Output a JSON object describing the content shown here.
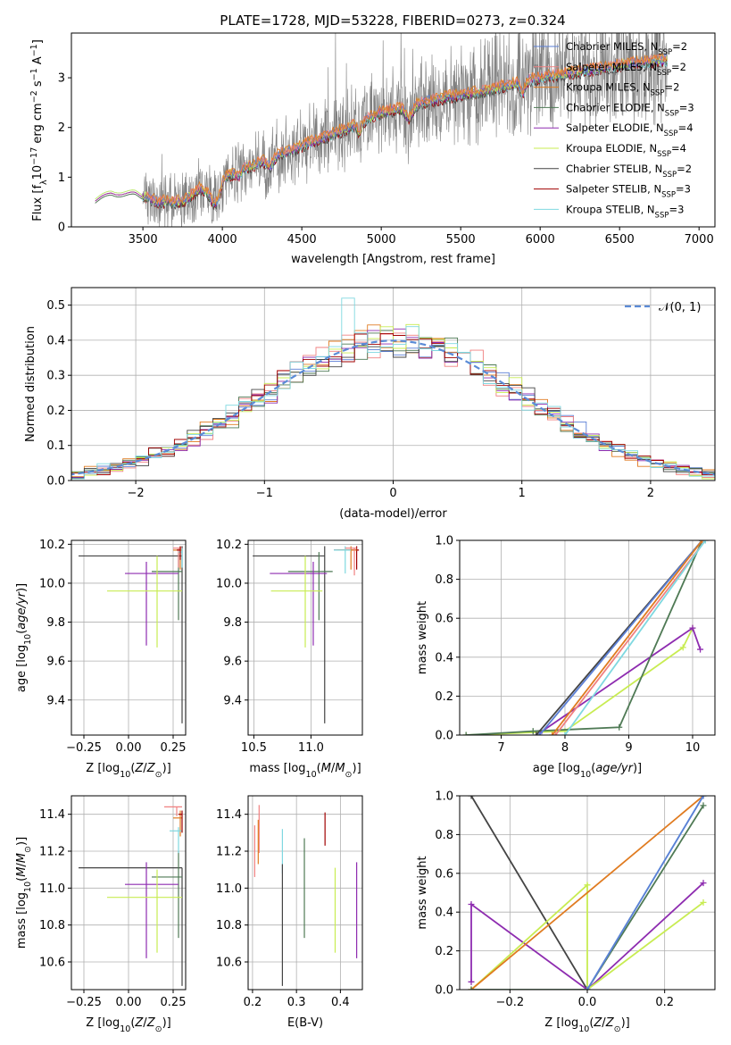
{
  "title": "PLATE=1728, MJD=53228, FIBERID=0273, z=0.324",
  "colors": {
    "chabrier_miles": "#5b7fd6",
    "salpeter_miles": "#f08080",
    "kroupa_miles": "#e07b20",
    "chabrier_elodie": "#4f7a55",
    "salpeter_elodie": "#8e2cb0",
    "kroupa_elodie": "#c8ec52",
    "chabrier_stelib": "#444444",
    "salpeter_stelib": "#a00000",
    "kroupa_stelib": "#7fd8e0",
    "data": "#7f7f7f"
  },
  "chart_data": [
    {
      "id": "spectrum",
      "type": "line",
      "xlabel": "wavelength [Angstrom, rest frame]",
      "ylabel": "Flux [f_λ10^-17 erg cm^-2 s^-1 A^-1]",
      "xlim": [
        3050,
        7100
      ],
      "ylim": [
        0,
        3.9
      ],
      "xticks": [
        3500,
        4000,
        4500,
        5000,
        5500,
        6000,
        6500,
        7000
      ],
      "yticks": [
        0,
        1,
        2,
        3
      ],
      "legend_position": "top-right",
      "legend": [
        {
          "label": "Chabrier MILES, N",
          "sub": "SSP",
          "tail": "=2",
          "color_key": "chabrier_miles"
        },
        {
          "label": "Salpeter MILES, N",
          "sub": "SSP",
          "tail": "=2",
          "color_key": "salpeter_miles"
        },
        {
          "label": "Kroupa MILES, N",
          "sub": "SSP",
          "tail": "=2",
          "color_key": "kroupa_miles"
        },
        {
          "label": "Chabrier ELODIE, N",
          "sub": "SSP",
          "tail": "=3",
          "color_key": "chabrier_elodie"
        },
        {
          "label": "Salpeter ELODIE, N",
          "sub": "SSP",
          "tail": "=4",
          "color_key": "salpeter_elodie"
        },
        {
          "label": "Kroupa ELODIE, N",
          "sub": "SSP",
          "tail": "=4",
          "color_key": "kroupa_elodie"
        },
        {
          "label": "Chabrier STELIB, N",
          "sub": "SSP",
          "tail": "=2",
          "color_key": "chabrier_stelib"
        },
        {
          "label": "Salpeter STELIB, N",
          "sub": "SSP",
          "tail": "=3",
          "color_key": "salpeter_stelib"
        },
        {
          "label": "Kroupa STELIB, N",
          "sub": "SSP",
          "tail": "=3",
          "color_key": "kroupa_stelib"
        }
      ],
      "model_envelope": [
        [
          3200,
          0.55
        ],
        [
          3300,
          0.72
        ],
        [
          3450,
          0.7
        ],
        [
          3600,
          0.5
        ],
        [
          3750,
          0.5
        ],
        [
          3850,
          0.75
        ],
        [
          3950,
          0.95
        ],
        [
          4050,
          1.05
        ],
        [
          4200,
          1.25
        ],
        [
          4400,
          1.5
        ],
        [
          4600,
          1.75
        ],
        [
          4800,
          2.0
        ],
        [
          5000,
          2.3
        ],
        [
          5200,
          2.45
        ],
        [
          5400,
          2.6
        ],
        [
          5600,
          2.7
        ],
        [
          5800,
          2.85
        ],
        [
          6000,
          3.0
        ],
        [
          6200,
          3.1
        ],
        [
          6400,
          3.2
        ],
        [
          6600,
          3.3
        ],
        [
          6800,
          3.35
        ]
      ],
      "data_range": [
        3500,
        6800
      ]
    },
    {
      "id": "residuals",
      "type": "histogram",
      "xlabel": "(data-model)/error",
      "ylabel": "Normed distribution",
      "xlim": [
        -2.5,
        2.5
      ],
      "ylim": [
        0,
        0.55
      ],
      "xticks": [
        -2,
        -1,
        0,
        1,
        2
      ],
      "yticks": [
        0.0,
        0.1,
        0.2,
        0.3,
        0.4,
        0.5
      ],
      "grid": true,
      "legend_position": "top-right",
      "gaussian_label": "𝒩(0, 1)",
      "bin_width": 0.1
    },
    {
      "id": "age_vs_Z",
      "type": "errorbar",
      "xlabel": "Z [log10(Z/Z⊙)]",
      "ylabel": "age [log10(age/yr)]",
      "xlim": [
        -0.32,
        0.32
      ],
      "ylim": [
        9.22,
        10.22
      ],
      "xticks": [
        -0.25,
        0.0,
        0.25
      ],
      "yticks": [
        9.4,
        9.6,
        9.8,
        10.0,
        10.2
      ],
      "grid": true
    },
    {
      "id": "age_vs_mass",
      "type": "errorbar",
      "xlabel": "mass [log10(M/M⊙)]",
      "xlim": [
        10.45,
        11.45
      ],
      "ylim": [
        9.22,
        10.22
      ],
      "xticks": [
        10.5,
        11.0
      ],
      "yticks": [
        9.4,
        9.6,
        9.8,
        10.0,
        10.2
      ],
      "grid": true
    },
    {
      "id": "massweight_vs_age",
      "type": "line",
      "xlabel": "age [log10(age/yr)]",
      "ylabel": "mass weight",
      "xlim": [
        6.35,
        10.35
      ],
      "ylim": [
        0,
        1.0
      ],
      "xticks": [
        7,
        8,
        9,
        10
      ],
      "yticks": [
        0.0,
        0.2,
        0.4,
        0.6,
        0.8,
        1.0
      ],
      "grid": true,
      "series": [
        {
          "color_key": "kroupa_elodie",
          "points": [
            [
              6.45,
              0.0
            ],
            [
              8.0,
              0.02
            ],
            [
              9.85,
              0.45
            ],
            [
              10.0,
              0.55
            ]
          ]
        },
        {
          "color_key": "salpeter_elodie",
          "points": [
            [
              7.6,
              0.01
            ],
            [
              10.0,
              0.55
            ],
            [
              10.12,
              0.44
            ]
          ]
        },
        {
          "color_key": "chabrier_elodie",
          "points": [
            [
              6.45,
              0.0
            ],
            [
              7.5,
              0.02
            ],
            [
              8.85,
              0.04
            ],
            [
              10.15,
              1.0
            ]
          ]
        },
        {
          "color_key": "chabrier_stelib",
          "points": [
            [
              7.55,
              0.0
            ],
            [
              10.15,
              1.0
            ]
          ]
        },
        {
          "color_key": "chabrier_miles",
          "points": [
            [
              7.6,
              0.0
            ],
            [
              10.15,
              1.0
            ]
          ]
        },
        {
          "color_key": "kroupa_miles",
          "points": [
            [
              7.8,
              0.0
            ],
            [
              10.15,
              1.0
            ]
          ]
        },
        {
          "color_key": "salpeter_miles",
          "points": [
            [
              7.85,
              0.0
            ],
            [
              10.2,
              1.0
            ]
          ]
        },
        {
          "color_key": "kroupa_stelib",
          "points": [
            [
              8.0,
              0.0
            ],
            [
              10.2,
              1.0
            ]
          ]
        }
      ]
    },
    {
      "id": "mass_vs_Z",
      "type": "errorbar",
      "xlabel": "Z [log10(Z/Z⊙)]",
      "ylabel": "mass [log10(M/M⊙)]",
      "xlim": [
        -0.32,
        0.32
      ],
      "ylim": [
        10.45,
        11.5
      ],
      "xticks": [
        -0.25,
        0.0,
        0.25
      ],
      "yticks": [
        10.6,
        10.8,
        11.0,
        11.2,
        11.4
      ],
      "grid": true
    },
    {
      "id": "mass_vs_ebv",
      "type": "errorbar",
      "xlabel": "E(B-V)",
      "xlim": [
        0.19,
        0.45
      ],
      "ylim": [
        10.45,
        11.5
      ],
      "xticks": [
        0.2,
        0.3,
        0.4
      ],
      "yticks": [
        10.6,
        10.8,
        11.0,
        11.2,
        11.4
      ],
      "grid": true
    },
    {
      "id": "massweight_vs_Z",
      "type": "line",
      "xlabel": "Z [log10(Z/Z⊙)]",
      "ylabel": "mass weight",
      "xlim": [
        -0.33,
        0.33
      ],
      "ylim": [
        0,
        1.0
      ],
      "xticks": [
        -0.2,
        0.0,
        0.2
      ],
      "yticks": [
        0.0,
        0.2,
        0.4,
        0.6,
        0.8,
        1.0
      ],
      "grid": true,
      "series": [
        {
          "color_key": "chabrier_stelib",
          "points": [
            [
              -0.3,
              1.0
            ],
            [
              0.0,
              0.0
            ]
          ]
        },
        {
          "color_key": "salpeter_elodie",
          "points": [
            [
              -0.3,
              0.04
            ],
            [
              -0.3,
              0.44
            ],
            [
              0.0,
              0.0
            ],
            [
              0.3,
              0.55
            ]
          ]
        },
        {
          "color_key": "kroupa_elodie",
          "points": [
            [
              -0.3,
              0.0
            ],
            [
              0.0,
              0.54
            ],
            [
              0.0,
              0.0
            ],
            [
              0.3,
              0.45
            ]
          ]
        },
        {
          "color_key": "kroupa_miles",
          "points": [
            [
              -0.3,
              0.0
            ],
            [
              0.3,
              1.0
            ]
          ]
        },
        {
          "color_key": "chabrier_elodie",
          "points": [
            [
              -0.3,
              0.0
            ],
            [
              0.0,
              0.0
            ],
            [
              0.3,
              0.95
            ]
          ]
        },
        {
          "color_key": "kroupa_stelib",
          "points": [
            [
              0.0,
              0.0
            ],
            [
              0.3,
              1.0
            ]
          ]
        },
        {
          "color_key": "chabrier_miles",
          "points": [
            [
              0.0,
              0.0
            ],
            [
              0.3,
              1.0
            ]
          ]
        }
      ]
    }
  ]
}
